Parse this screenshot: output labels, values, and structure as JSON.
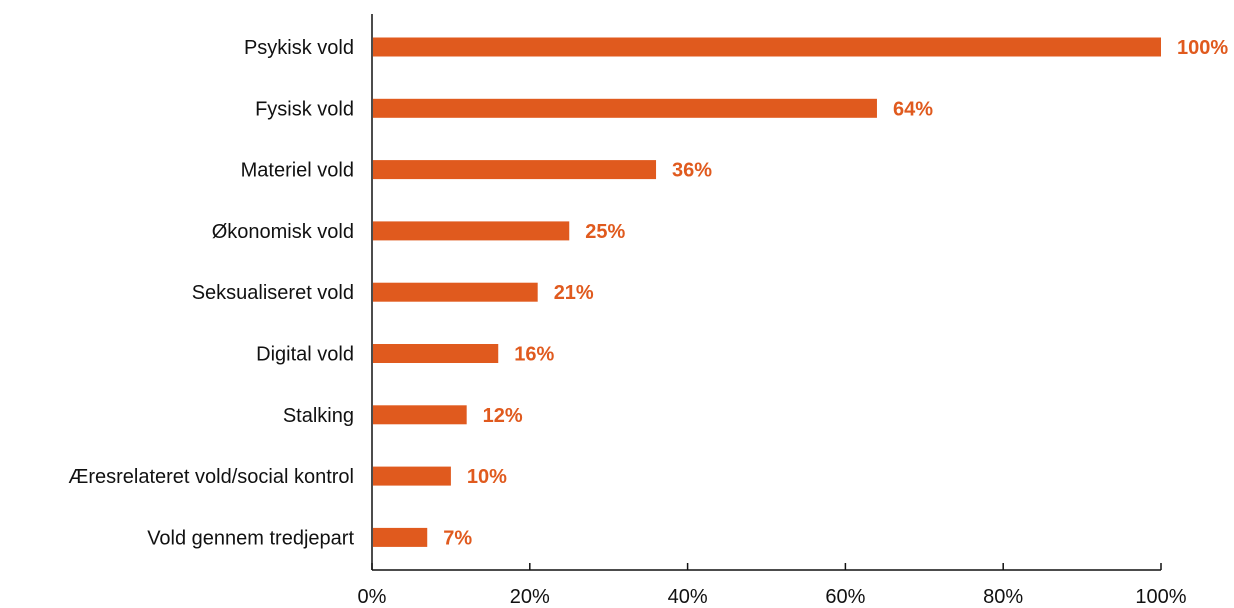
{
  "chart_data": {
    "type": "bar",
    "orientation": "horizontal",
    "categories": [
      "Psykisk vold",
      "Fysisk vold",
      "Materiel vold",
      "Økonomisk vold",
      "Seksualiseret vold",
      "Digital vold",
      "Stalking",
      "Æresrelateret vold/social kontrol",
      "Vold gennem tredjepart"
    ],
    "values": [
      100,
      64,
      36,
      25,
      21,
      16,
      12,
      10,
      7
    ],
    "value_labels": [
      "100%",
      "64%",
      "36%",
      "25%",
      "21%",
      "16%",
      "12%",
      "10%",
      "7%"
    ],
    "x_ticks": [
      0,
      20,
      40,
      60,
      80,
      100
    ],
    "x_tick_labels": [
      "0%",
      "20%",
      "40%",
      "60%",
      "80%",
      "100%"
    ],
    "xlim": [
      0,
      100
    ],
    "title": "",
    "xlabel": "",
    "ylabel": "",
    "grid": false,
    "legend": "none",
    "colors": {
      "bar": "#e05a1e",
      "value_label": "#e05a1e",
      "axis": "#111111"
    }
  }
}
